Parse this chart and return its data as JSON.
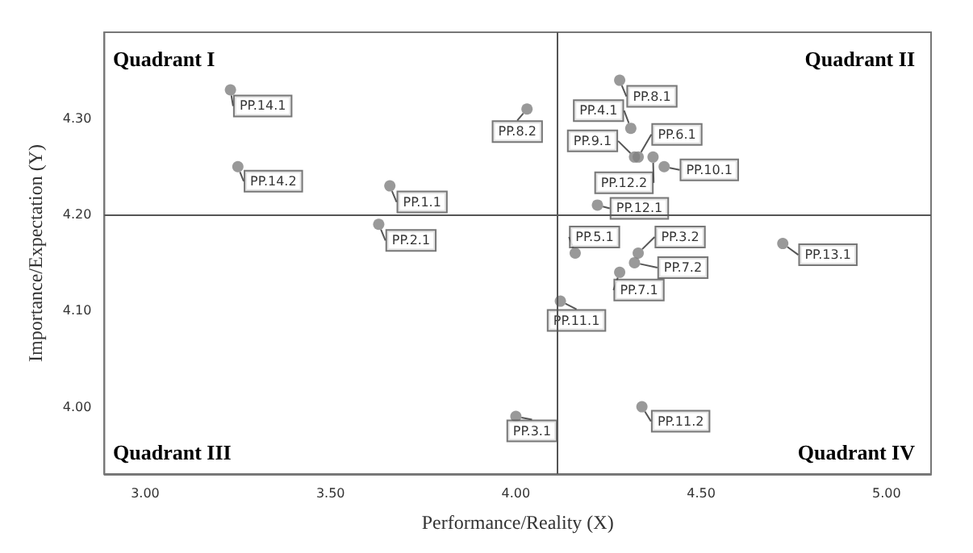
{
  "chart_data": {
    "type": "scatter",
    "xlabel": "Performance/Reality (X)",
    "ylabel": "Importance/Expectation (Y)",
    "annotations": [
      "Quadrant I",
      "Quadrant II",
      "Quadrant III",
      "Quadrant IV"
    ],
    "x": [
      3.23,
      4.03,
      3.25,
      3.66,
      3.63,
      4.28,
      4.31,
      4.32,
      4.33,
      4.37,
      4.4,
      4.22,
      4.16,
      4.33,
      4.32,
      4.28,
      4.72,
      4.12,
      4.0,
      4.34
    ],
    "values": [
      4.33,
      4.31,
      4.25,
      4.23,
      4.19,
      4.34,
      4.29,
      4.26,
      4.26,
      4.26,
      4.25,
      4.21,
      4.16,
      4.16,
      4.15,
      4.14,
      4.17,
      4.11,
      3.99,
      4.0
    ],
    "value_labels": [
      "PP.14.1",
      "PP.8.2",
      "PP.14.2",
      "PP.1.1",
      "PP.2.1",
      "PP.8.1",
      "PP.4.1",
      "PP.9.1",
      "PP.6.1",
      "PP.12.2",
      "PP.10.1",
      "PP.12.1",
      "PP.5.1",
      "PP.3.2",
      "PP.7.2",
      "PP.7.1",
      "PP.13.1",
      "PP.11.1",
      "PP.3.1",
      "PP.11.2"
    ],
    "color": "#808080",
    "marker": "circle",
    "grid": false,
    "xlim": [
      2.89,
      5.12
    ],
    "ylim": [
      3.93,
      4.39
    ],
    "xticks": [
      {
        "value": 3,
        "label": "3.00"
      },
      {
        "value": 3.5,
        "label": "3.50"
      },
      {
        "value": 4,
        "label": "4.00"
      },
      {
        "value": 4.5,
        "label": "4.50"
      },
      {
        "value": 5,
        "label": "5.00"
      }
    ],
    "yticks": [
      {
        "value": 4,
        "label": "4.00"
      },
      {
        "value": 4.1,
        "label": "4.10"
      },
      {
        "value": 4.2,
        "label": "4.20"
      },
      {
        "value": 4.3,
        "label": "4.30"
      }
    ],
    "ref_lines": [
      {
        "axis": "x",
        "value": 4.11,
        "color": "#555555"
      },
      {
        "axis": "y",
        "value": 4.2,
        "color": "#555555"
      }
    ]
  }
}
